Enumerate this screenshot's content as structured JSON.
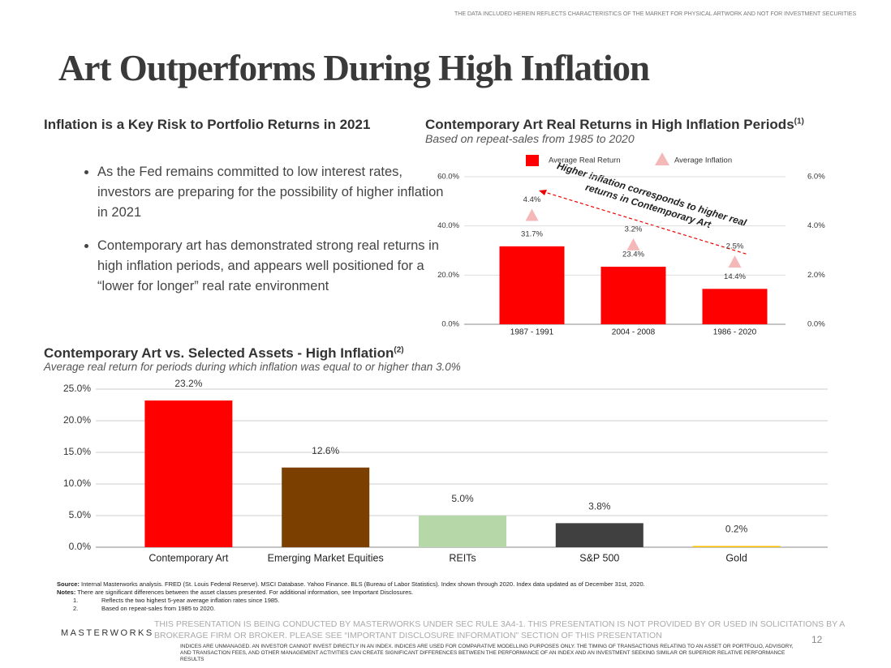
{
  "header_note": "THE DATA INCLUDED HEREIN REFLECTS CHARACTERISTICS OF THE MARKET FOR PHYSICAL ARTWORK AND NOT FOR INVESTMENT SECURITIES",
  "title": "Art Outperforms During High Inflation",
  "left_section": {
    "heading": "Inflation is a Key Risk to Portfolio Returns in 2021",
    "bullets": [
      "As the Fed remains committed to low interest rates, investors are preparing for the possibility of higher inflation in 2021",
      "Contemporary art has demonstrated strong real returns in high inflation periods, and appears well positioned for a “lower for longer” real rate environment"
    ]
  },
  "chart_data": [
    {
      "type": "bar",
      "title": "Contemporary Art Real Returns in High Inflation Periods",
      "title_note": "(1)",
      "subtitle": "Based on repeat-sales from 1985 to 2020",
      "categories": [
        "1987 - 1991",
        "2004 - 2008",
        "1986 - 2020"
      ],
      "series": [
        {
          "name": "Average Real Return",
          "type": "bar",
          "color": "#ff0000",
          "values": [
            31.7,
            23.4,
            14.4
          ],
          "value_labels": [
            "31.7%",
            "23.4%",
            "14.4%"
          ]
        },
        {
          "name": "Average Inflation",
          "type": "scatter",
          "marker": "triangle",
          "axis": "y2",
          "color": "#f4b8b8",
          "values": [
            4.4,
            3.2,
            2.5
          ],
          "value_labels": [
            "4.4%",
            "3.2%",
            "2.5%"
          ]
        }
      ],
      "ylim": [
        0,
        60
      ],
      "yticks": [
        {
          "value": 0,
          "label": "0.0%"
        },
        {
          "value": 20,
          "label": "20.0%"
        },
        {
          "value": 40,
          "label": "40.0%"
        },
        {
          "value": 60,
          "label": "60.0%"
        }
      ],
      "y2lim": [
        0,
        6
      ],
      "y2ticks": [
        {
          "value": 0,
          "label": "0.0%"
        },
        {
          "value": 2,
          "label": "2.0%"
        },
        {
          "value": 4,
          "label": "4.0%"
        },
        {
          "value": 6,
          "label": "6.0%"
        }
      ],
      "grid": true,
      "legend": "top",
      "annotation": [
        "Higher inflation corresponds to higher real",
        "returns in Contemporary Art"
      ]
    },
    {
      "type": "bar",
      "title": "Contemporary Art vs. Selected Assets - High Inflation",
      "title_note": "(2)",
      "subtitle": "Average real return for periods during which inflation was equal to or higher than 3.0%",
      "categories": [
        "Contemporary Art",
        "Emerging Market Equities",
        "REITs",
        "S&P 500",
        "Gold"
      ],
      "values": [
        23.2,
        12.6,
        5,
        3.8,
        0.2
      ],
      "value_labels": [
        "23.2%",
        "12.6%",
        "5.0%",
        "3.8%",
        "0.2%"
      ],
      "colors": [
        "#ff0000",
        "#7b3f00",
        "#b6d7a8",
        "#404040",
        "#ffc000"
      ],
      "ylim": [
        0,
        25
      ],
      "yticks": [
        {
          "value": 0,
          "label": "0.0%"
        },
        {
          "value": 5,
          "label": "5.0%"
        },
        {
          "value": 10,
          "label": "10.0%"
        },
        {
          "value": 15,
          "label": "15.0%"
        },
        {
          "value": 20,
          "label": "20.0%"
        },
        {
          "value": 25,
          "label": "25.0%"
        }
      ],
      "grid": true
    }
  ],
  "footnotes": {
    "source_label": "Source:",
    "source": "Internal Masterworks analysis. FRED (St. Louis Federal Reserve). MSCI Database. Yahoo Finance. BLS (Bureau of Labor Statistics). Index shown through 2020. Index data updated as of December 31st, 2020.",
    "notes_label": "Notes:",
    "notes": "There are significant differences between the asset classes presented. For additional information, see Important Disclosures.",
    "items": [
      {
        "number": "1.",
        "text": "Reflects the two highest 5-year average inflation rates since 1985."
      },
      {
        "number": "2.",
        "text": "Based on repeat-sales from 1985 to 2020."
      }
    ]
  },
  "footer": {
    "logo": "MASTERWORKS",
    "disclosure": "THIS PRESENTATION IS BEING CONDUCTED BY MASTERWORKS UNDER SEC RULE 3A4-1. THIS PRESENTATION IS NOT PROVIDED BY OR USED IN SOLICITATIONS BY A BROKERAGE FIRM OR BROKER. PLEASE SEE “IMPORTANT DISCLOSURE INFORMATION” SECTION OF THIS PRESENTATION",
    "indices_note": "INDICES ARE UNMANAGED. AN INVESTOR CANNOT INVEST DIRECTLY IN AN INDEX. INDICES ARE USED FOR COMPARATIVE MODELLING PURPOSES ONLY. THE TIMING OF TRANSACTIONS RELATING TO AN ASSET OR PORTFOLIO, ADVISORY, AND TRANSACTION FEES, AND OTHER MANAGEMENT ACTIVITIES CAN CREATE SIGNIFICANT DIFFERENCES BETWEEN THE PERFORMANCE OF AN INDEX AND AN INVESTMENT SEEKING SIMILAR OR SUPERIOR RELATIVE PERFORMANCE RESULTS",
    "page": "12"
  }
}
